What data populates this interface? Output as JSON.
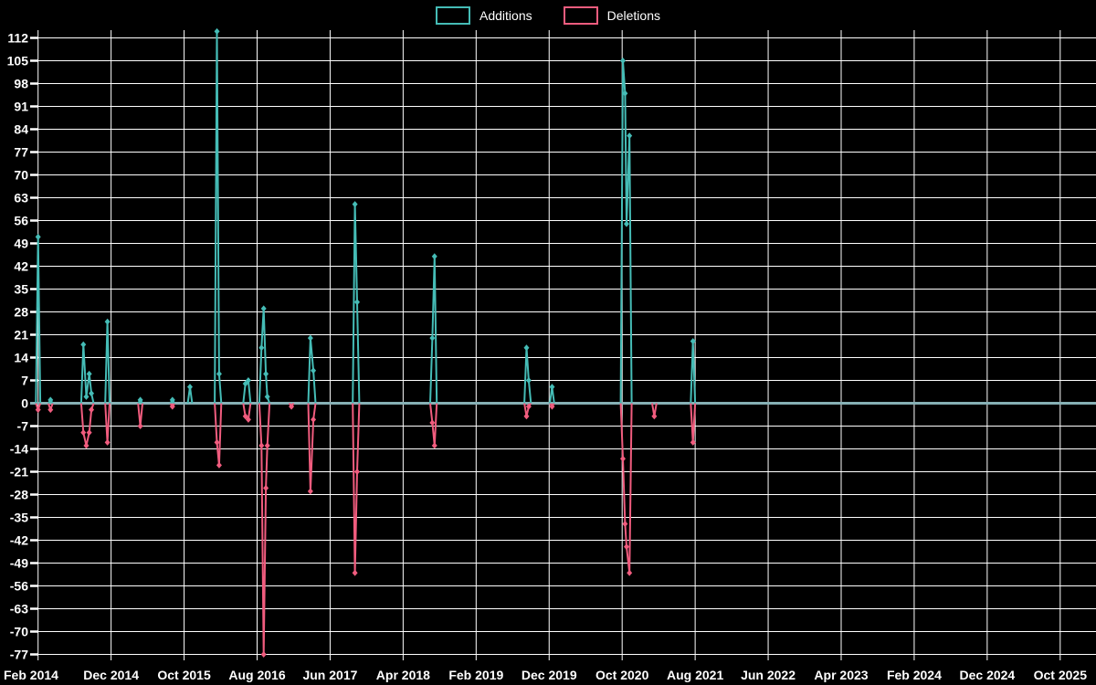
{
  "chart_data": {
    "type": "line",
    "title": "",
    "background": "#000000",
    "grid": true,
    "grid_color": "#ffffff",
    "baseline_color": "#86b0b5",
    "legend_position": "top-center",
    "legend": [
      {
        "name": "Additions",
        "color": "#45bcb6"
      },
      {
        "name": "Deletions",
        "color": "#f05c7e"
      }
    ],
    "y_ticks": [
      "112",
      "105",
      "98",
      "91",
      "84",
      "77",
      "70",
      "63",
      "56",
      "49",
      "42",
      "35",
      "28",
      "21",
      "14",
      "7",
      "0",
      "-7",
      "-14",
      "-21",
      "-28",
      "-35",
      "-42",
      "-49",
      "-56",
      "-63",
      "-70",
      "-77"
    ],
    "ylim": [
      -79,
      114.5
    ],
    "x_ticks": [
      "Feb 2014",
      "Dec 2014",
      "Oct 2015",
      "Aug 2016",
      "Jun 2017",
      "Apr 2018",
      "Feb 2019",
      "Dec 2019",
      "Oct 2020",
      "Aug 2021",
      "Jun 2022",
      "Apr 2023",
      "Feb 2024",
      "Dec 2024",
      "Oct 2025"
    ],
    "months_per_tick": 10,
    "x_start_label": "Feb 2014",
    "events_note": "m = months after Feb 2014; add = weekly additions; del = weekly deletions",
    "events": [
      {
        "m": 0.0,
        "add": 51,
        "del": -2
      },
      {
        "m": 1.7,
        "add": 1,
        "del": -2
      },
      {
        "m": 6.2,
        "add": 18,
        "del": -9
      },
      {
        "m": 6.6,
        "add": 2,
        "del": -13
      },
      {
        "m": 7.0,
        "add": 9,
        "del": -9
      },
      {
        "m": 7.3,
        "add": 3,
        "del": -2
      },
      {
        "m": 9.5,
        "add": 25,
        "del": -12
      },
      {
        "m": 14.0,
        "add": 1,
        "del": -7
      },
      {
        "m": 18.4,
        "add": 1,
        "del": -1
      },
      {
        "m": 20.8,
        "add": 5,
        "del": 0
      },
      {
        "m": 24.5,
        "add": 114,
        "del": -12
      },
      {
        "m": 24.8,
        "add": 9,
        "del": -19
      },
      {
        "m": 28.4,
        "add": 6,
        "del": -4
      },
      {
        "m": 28.8,
        "add": 7,
        "del": -5
      },
      {
        "m": 30.6,
        "add": 17,
        "del": -13
      },
      {
        "m": 30.9,
        "add": 29,
        "del": -77
      },
      {
        "m": 31.2,
        "add": 9,
        "del": -26
      },
      {
        "m": 31.4,
        "add": 2,
        "del": -13
      },
      {
        "m": 34.7,
        "add": 0,
        "del": -1
      },
      {
        "m": 37.3,
        "add": 20,
        "del": -27
      },
      {
        "m": 37.7,
        "add": 10,
        "del": -5
      },
      {
        "m": 43.4,
        "add": 61,
        "del": -52
      },
      {
        "m": 43.7,
        "add": 31,
        "del": -21
      },
      {
        "m": 54.0,
        "add": 20,
        "del": -6
      },
      {
        "m": 54.3,
        "add": 45,
        "del": -13
      },
      {
        "m": 66.9,
        "add": 17,
        "del": -4
      },
      {
        "m": 67.2,
        "add": 7,
        "del": -1
      },
      {
        "m": 70.4,
        "add": 5,
        "del": -1
      },
      {
        "m": 80.1,
        "add": 105,
        "del": -17
      },
      {
        "m": 80.4,
        "add": 95,
        "del": -37
      },
      {
        "m": 80.6,
        "add": 55,
        "del": -44
      },
      {
        "m": 81.0,
        "add": 82,
        "del": -52
      },
      {
        "m": 84.4,
        "add": 0,
        "del": -4
      },
      {
        "m": 89.7,
        "add": 19,
        "del": -12
      }
    ]
  }
}
